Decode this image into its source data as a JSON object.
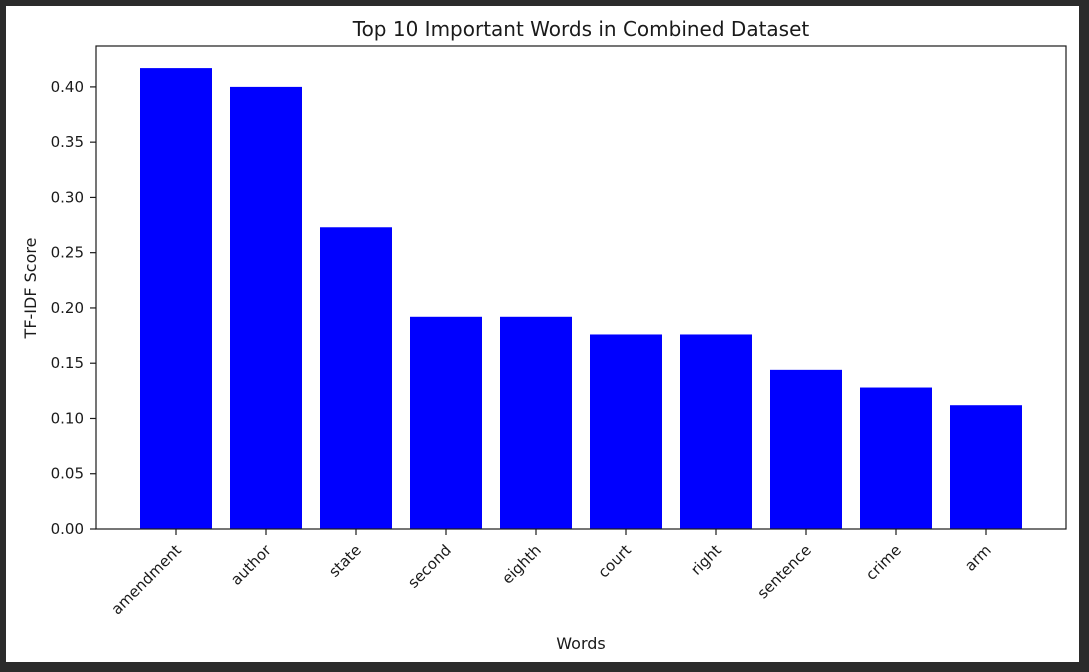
{
  "chart_data": {
    "type": "bar",
    "title": "Top 10 Important Words in Combined Dataset",
    "xlabel": "Words",
    "ylabel": "TF-IDF Score",
    "categories": [
      "amendment",
      "author",
      "state",
      "second",
      "eighth",
      "court",
      "right",
      "sentence",
      "crime",
      "arm"
    ],
    "values": [
      0.417,
      0.4,
      0.273,
      0.192,
      0.192,
      0.176,
      0.176,
      0.144,
      0.128,
      0.112
    ],
    "ylim": [
      0,
      0.437
    ],
    "yticks": [
      "0.00",
      "0.05",
      "0.10",
      "0.15",
      "0.20",
      "0.25",
      "0.30",
      "0.35",
      "0.40"
    ],
    "bar_color": "#0000ff",
    "grid": false,
    "legend": "none"
  }
}
